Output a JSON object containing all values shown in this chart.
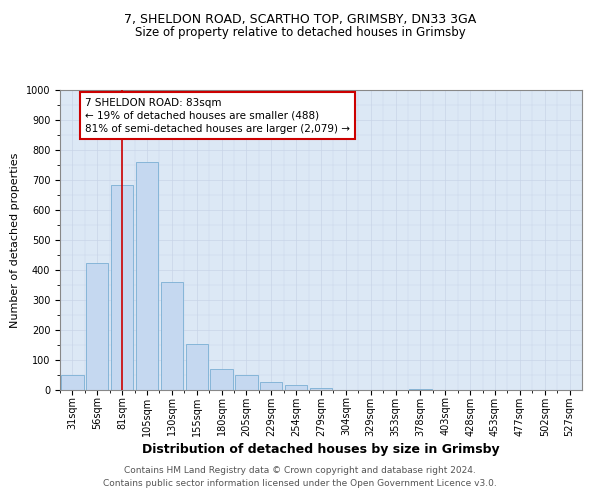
{
  "title_line1": "7, SHELDON ROAD, SCARTHO TOP, GRIMSBY, DN33 3GA",
  "title_line2": "Size of property relative to detached houses in Grimsby",
  "xlabel": "Distribution of detached houses by size in Grimsby",
  "ylabel": "Number of detached properties",
  "bar_labels": [
    "31sqm",
    "56sqm",
    "81sqm",
    "105sqm",
    "130sqm",
    "155sqm",
    "180sqm",
    "205sqm",
    "229sqm",
    "254sqm",
    "279sqm",
    "304sqm",
    "329sqm",
    "353sqm",
    "378sqm",
    "403sqm",
    "428sqm",
    "453sqm",
    "477sqm",
    "502sqm",
    "527sqm"
  ],
  "bar_values": [
    50,
    425,
    685,
    760,
    360,
    152,
    70,
    50,
    28,
    18,
    8,
    0,
    0,
    0,
    5,
    0,
    0,
    0,
    0,
    0,
    0
  ],
  "bar_color": "#c5d8f0",
  "bar_edge_color": "#7aafd4",
  "property_line_x": 2.0,
  "annotation_box_text": "7 SHELDON ROAD: 83sqm\n← 19% of detached houses are smaller (488)\n81% of semi-detached houses are larger (2,079) →",
  "annotation_box_color": "#ffffff",
  "annotation_box_edgecolor": "#cc0000",
  "ylim": [
    0,
    1000
  ],
  "yticks": [
    0,
    100,
    200,
    300,
    400,
    500,
    600,
    700,
    800,
    900,
    1000
  ],
  "grid_color": "#c8d4e8",
  "background_color": "#dce8f5",
  "footer_line1": "Contains HM Land Registry data © Crown copyright and database right 2024.",
  "footer_line2": "Contains public sector information licensed under the Open Government Licence v3.0.",
  "property_line_color": "#cc0000",
  "title_fontsize": 9,
  "subtitle_fontsize": 8.5,
  "ylabel_fontsize": 8,
  "xlabel_fontsize": 9,
  "tick_fontsize": 7,
  "annotation_fontsize": 7.5,
  "footer_fontsize": 6.5
}
